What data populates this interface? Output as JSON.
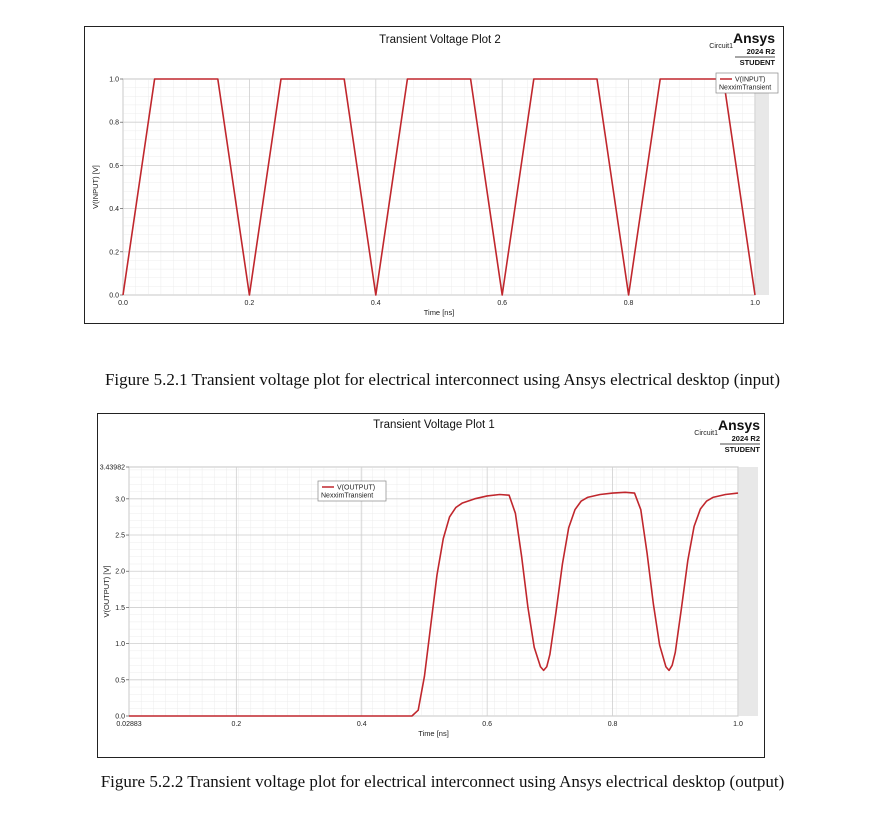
{
  "figure1": {
    "caption": "Figure 5.2.1 Transient voltage plot for electrical interconnect using Ansys electrical desktop (input)",
    "brand": "Ansys",
    "version": "2024 R2",
    "edition": "STUDENT",
    "circuit": "Circuit1"
  },
  "figure2": {
    "caption": "Figure 5.2.2 Transient voltage plot for electrical interconnect using Ansys electrical desktop (output)",
    "brand": "Ansys",
    "version": "2024 R2",
    "edition": "STUDENT",
    "circuit": "Circuit1"
  },
  "chart_data": [
    {
      "type": "line",
      "title": "Transient Voltage Plot 2",
      "xlabel": "Time [ns]",
      "ylabel": "V(INPUT) [V]",
      "xlim": [
        0.0,
        1.0
      ],
      "ylim": [
        0.0,
        1.0
      ],
      "x_ticks": [
        "0.0",
        "0.2",
        "0.4",
        "0.6",
        "0.8",
        "1.0"
      ],
      "y_ticks": [
        "0.0",
        "0.2",
        "0.4",
        "0.6",
        "0.8",
        "1.0"
      ],
      "grid": true,
      "legend_position": "top-right",
      "series": [
        {
          "name": "V(INPUT)",
          "sub_name": "NexximTransient",
          "color": "#c0272d",
          "x": [
            0.0,
            0.05,
            0.15,
            0.2,
            0.25,
            0.35,
            0.4,
            0.45,
            0.55,
            0.6,
            0.65,
            0.75,
            0.8,
            0.85,
            0.95,
            1.0
          ],
          "y": [
            0.0,
            1.0,
            1.0,
            0.0,
            1.0,
            1.0,
            0.0,
            1.0,
            1.0,
            0.0,
            1.0,
            1.0,
            0.0,
            1.0,
            1.0,
            0.0
          ]
        }
      ]
    },
    {
      "type": "line",
      "title": "Transient Voltage Plot 1",
      "xlabel": "Time [ns]",
      "ylabel": "V(OUTPUT) [V]",
      "xlim": [
        0.02883,
        1.0
      ],
      "ylim": [
        0.0,
        3.43982
      ],
      "x_ticks": [
        "0.02883",
        "0.2",
        "0.4",
        "0.6",
        "0.8",
        "1.0"
      ],
      "y_ticks": [
        "0.0",
        "0.5",
        "1.0",
        "1.5",
        "2.0",
        "2.5",
        "3.0",
        "3.43982"
      ],
      "grid": true,
      "legend_position": "top-left",
      "series": [
        {
          "name": "V(OUTPUT)",
          "sub_name": "NexximTransient",
          "color": "#c0272d",
          "x": [
            0.02883,
            0.2,
            0.4,
            0.48,
            0.49,
            0.5,
            0.51,
            0.52,
            0.53,
            0.54,
            0.55,
            0.56,
            0.58,
            0.6,
            0.62,
            0.635,
            0.645,
            0.655,
            0.665,
            0.675,
            0.685,
            0.69,
            0.695,
            0.7,
            0.71,
            0.72,
            0.73,
            0.74,
            0.75,
            0.76,
            0.78,
            0.8,
            0.82,
            0.835,
            0.845,
            0.855,
            0.865,
            0.875,
            0.885,
            0.89,
            0.895,
            0.9,
            0.91,
            0.92,
            0.93,
            0.94,
            0.95,
            0.96,
            0.98,
            1.0
          ],
          "y": [
            0.0,
            0.0,
            0.0,
            0.0,
            0.08,
            0.55,
            1.25,
            1.95,
            2.45,
            2.75,
            2.88,
            2.94,
            3.0,
            3.04,
            3.06,
            3.05,
            2.8,
            2.2,
            1.5,
            0.95,
            0.68,
            0.63,
            0.68,
            0.85,
            1.45,
            2.1,
            2.6,
            2.85,
            2.97,
            3.02,
            3.06,
            3.08,
            3.09,
            3.08,
            2.85,
            2.25,
            1.55,
            0.98,
            0.68,
            0.63,
            0.7,
            0.88,
            1.5,
            2.15,
            2.62,
            2.86,
            2.97,
            3.02,
            3.06,
            3.08
          ]
        }
      ]
    }
  ]
}
